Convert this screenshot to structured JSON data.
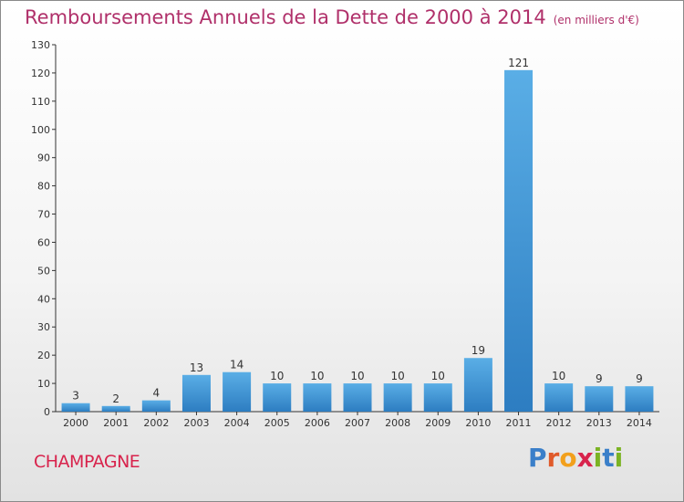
{
  "header": {
    "title": "Remboursements Annuels de la Dette de 2000 à 2014",
    "unit": "(en milliers d'€)"
  },
  "footer": {
    "commune": "CHAMPAGNE",
    "logo": "Proxiti"
  },
  "colors": {
    "title": "#b0306a",
    "commune": "#d8234c",
    "bar_light": "#5aaee6",
    "bar_dark": "#2d7dc1"
  },
  "chart_data": {
    "type": "bar",
    "title": "Remboursements Annuels de la Dette de 2000 à 2014",
    "xlabel": "",
    "ylabel": "",
    "categories": [
      "2000",
      "2001",
      "2002",
      "2003",
      "2004",
      "2005",
      "2006",
      "2007",
      "2008",
      "2009",
      "2010",
      "2011",
      "2012",
      "2013",
      "2014"
    ],
    "values": [
      3,
      2,
      4,
      13,
      14,
      10,
      10,
      10,
      10,
      10,
      19,
      121,
      10,
      9,
      9
    ],
    "ylim": [
      0,
      130
    ],
    "yticks": [
      0,
      10,
      20,
      30,
      40,
      50,
      60,
      70,
      80,
      90,
      100,
      110,
      120,
      130
    ],
    "grid": false,
    "legend": "none"
  }
}
